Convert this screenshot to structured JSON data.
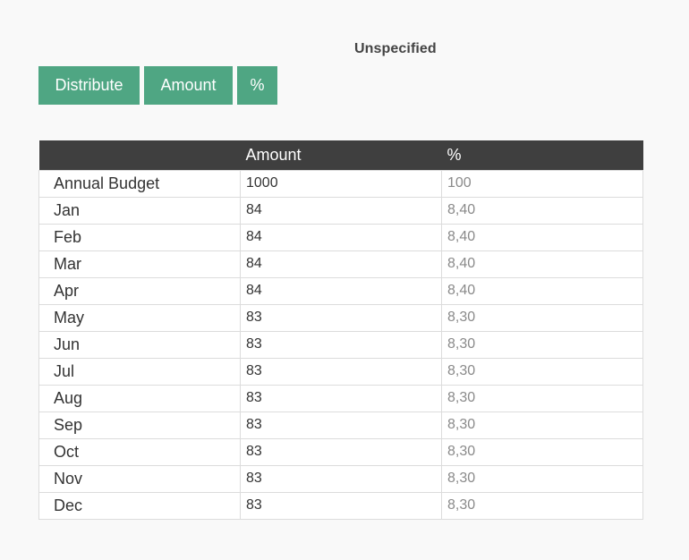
{
  "heading": "Unspecified",
  "buttons": {
    "distribute": "Distribute",
    "amount": "Amount",
    "percent": "%"
  },
  "table": {
    "headers": [
      "",
      "Amount",
      "%"
    ],
    "rows": [
      {
        "label": "Annual Budget",
        "amount": "1000",
        "percent": "100"
      },
      {
        "label": "Jan",
        "amount": "84",
        "percent": "8,40"
      },
      {
        "label": "Feb",
        "amount": "84",
        "percent": "8,40"
      },
      {
        "label": "Mar",
        "amount": "84",
        "percent": "8,40"
      },
      {
        "label": "Apr",
        "amount": "84",
        "percent": "8,40"
      },
      {
        "label": "May",
        "amount": "83",
        "percent": "8,30"
      },
      {
        "label": "Jun",
        "amount": "83",
        "percent": "8,30"
      },
      {
        "label": "Jul",
        "amount": "83",
        "percent": "8,30"
      },
      {
        "label": "Aug",
        "amount": "83",
        "percent": "8,30"
      },
      {
        "label": "Sep",
        "amount": "83",
        "percent": "8,30"
      },
      {
        "label": "Oct",
        "amount": "83",
        "percent": "8,30"
      },
      {
        "label": "Nov",
        "amount": "83",
        "percent": "8,30"
      },
      {
        "label": "Dec",
        "amount": "83",
        "percent": "8,30"
      }
    ]
  },
  "colors": {
    "button_bg": "#4fa683",
    "header_bg": "#3f3f3f",
    "percent_text": "#8a8a8a"
  }
}
